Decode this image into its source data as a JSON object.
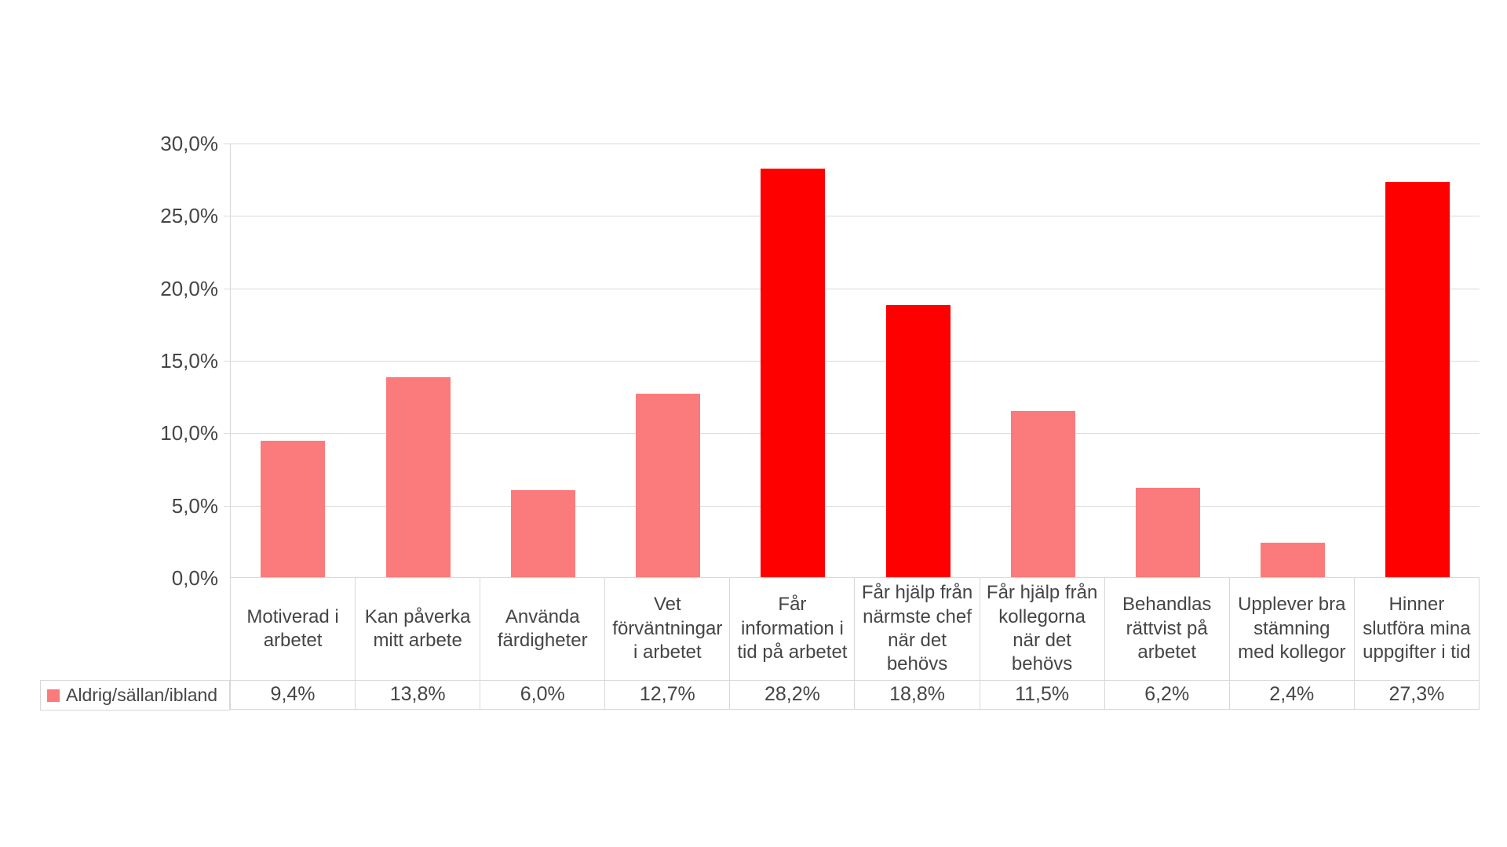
{
  "chart_data": {
    "type": "bar",
    "title": "",
    "xlabel": "",
    "ylabel": "",
    "ylim": [
      0,
      30
    ],
    "grid": true,
    "legend_position": "data-table-left",
    "ytick_labels": [
      "30,0%",
      "25,0%",
      "20,0%",
      "15,0%",
      "10,0%",
      "5,0%",
      "0,0%"
    ],
    "categories": [
      "Motiverad i arbetet",
      "Kan påverka mitt arbete",
      "Använda färdigheter",
      "Vet förväntningar i arbetet",
      "Får information i tid på arbetet",
      "Får hjälp från närmste chef när det behövs",
      "Får hjälp från kollegorna när det behövs",
      "Behandlas rättvist på arbetet",
      "Upplever bra stämning med kollegor",
      "Hinner slutföra mina uppgifter i tid"
    ],
    "series": [
      {
        "name": "Aldrig/sällan/ibland",
        "values": [
          9.4,
          13.8,
          6.0,
          12.7,
          28.2,
          18.8,
          11.5,
          6.2,
          2.4,
          27.3
        ],
        "value_labels": [
          "9,4%",
          "13,8%",
          "6,0%",
          "12,7%",
          "28,2%",
          "18,8%",
          "11,5%",
          "6,2%",
          "2,4%",
          "27,3%"
        ],
        "highlighted": [
          false,
          false,
          false,
          false,
          true,
          true,
          false,
          false,
          false,
          true
        ]
      }
    ],
    "colors": {
      "bar_default": "#FB7B7C",
      "bar_highlight": "#FF0000",
      "gridline": "#D9D9D9",
      "border": "#D8D8D8",
      "text": "#454545"
    }
  }
}
